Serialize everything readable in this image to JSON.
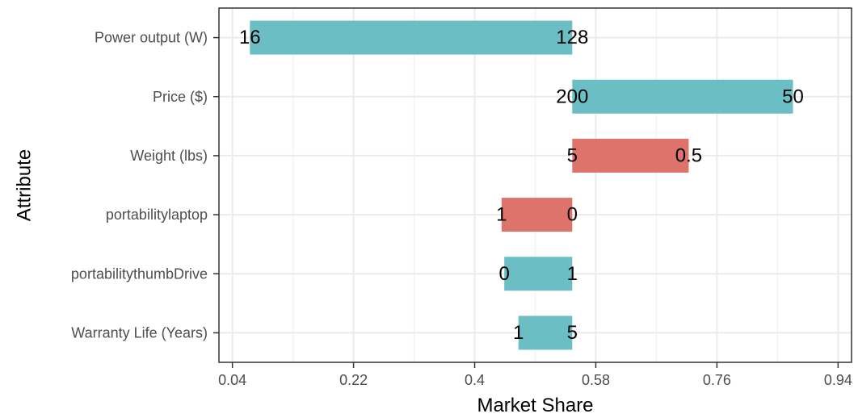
{
  "chart_data": {
    "type": "bar",
    "orientation": "horizontal",
    "title": "",
    "xlabel": "Market Share",
    "ylabel": "Attribute",
    "xlim": [
      0.02,
      0.96
    ],
    "xticks": [
      0.04,
      0.22,
      0.4,
      0.58,
      0.76,
      0.94
    ],
    "xtick_labels": [
      "0.04",
      "0.22",
      "0.4",
      "0.58",
      "0.76",
      "0.94"
    ],
    "categories": [
      "Power output (W)",
      "Price ($)",
      "Weight (lbs)",
      "portabilitylaptop",
      "portabilitythumbDrive",
      "Warranty Life (Years)"
    ],
    "baseline": 0.545,
    "bars": [
      {
        "category": "Power output (W)",
        "start": 0.066,
        "end": 0.545,
        "color": "#6bbec3",
        "low_label": "16",
        "high_label": "128",
        "low_at": "start",
        "high_at": "end"
      },
      {
        "category": "Price ($)",
        "start": 0.545,
        "end": 0.873,
        "color": "#6bbec3",
        "low_label": "200",
        "high_label": "50",
        "low_at": "start",
        "high_at": "end"
      },
      {
        "category": "Weight (lbs)",
        "start": 0.545,
        "end": 0.718,
        "color": "#de736b",
        "low_label": "5",
        "high_label": "0.5",
        "low_at": "start",
        "high_at": "end"
      },
      {
        "category": "portabilitylaptop",
        "start": 0.44,
        "end": 0.545,
        "color": "#de736b",
        "low_label": "1",
        "high_label": "0",
        "low_at": "start",
        "high_at": "end"
      },
      {
        "category": "portabilitythumbDrive",
        "start": 0.444,
        "end": 0.545,
        "color": "#6bbec3",
        "low_label": "0",
        "high_label": "1",
        "low_at": "start",
        "high_at": "end"
      },
      {
        "category": "Warranty Life (Years)",
        "start": 0.465,
        "end": 0.545,
        "color": "#6bbec3",
        "low_label": "1",
        "high_label": "5",
        "low_at": "start",
        "high_at": "end"
      }
    ],
    "grid": true,
    "legend": "none",
    "colors": {
      "panel_border": "#333333",
      "grid_major": "#ebebeb",
      "grid_minor": "#f3f3f3",
      "tick": "#333333"
    }
  }
}
